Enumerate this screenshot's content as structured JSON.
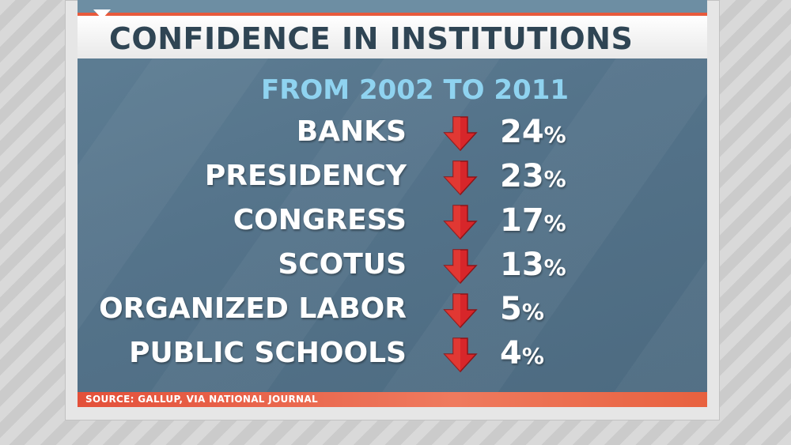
{
  "title": "CONFIDENCE IN INSTITUTIONS",
  "subtitle": "FROM 2002 TO 2011",
  "colors": {
    "accent": "#e85a3c",
    "board": "#557489",
    "subtitle": "#8fd3f0",
    "arrow": "#d7262a"
  },
  "items": [
    {
      "label": "BANKS",
      "value": "24",
      "unit": "%",
      "icon": "arrow-down-icon"
    },
    {
      "label": "PRESIDENCY",
      "value": "23",
      "unit": "%",
      "icon": "arrow-down-icon"
    },
    {
      "label": "CONGRESS",
      "value": "17",
      "unit": "%",
      "icon": "arrow-down-icon"
    },
    {
      "label": "SCOTUS",
      "value": "13",
      "unit": "%",
      "icon": "arrow-down-icon"
    },
    {
      "label": "ORGANIZED LABOR",
      "value": "5",
      "unit": "%",
      "icon": "arrow-down-icon"
    },
    {
      "label": "PUBLIC SCHOOLS",
      "value": "4",
      "unit": "%",
      "icon": "arrow-down-icon"
    }
  ],
  "source": "SOURCE: GALLUP, VIA NATIONAL JOURNAL"
}
